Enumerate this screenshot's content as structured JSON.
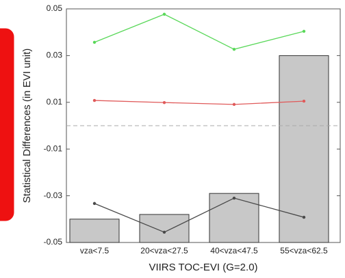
{
  "chart_data": {
    "type": "bar",
    "xlabel": "VIIRS TOC-EVI (G=2.0)",
    "ylabel": "Statistical Differences (in EVI unit)",
    "categories": [
      "vza<7.5",
      "20<vza<27.5",
      "40<vza<47.5",
      "55<vza<62.5"
    ],
    "values": [
      -0.04,
      -0.038,
      -0.029,
      0.03
    ],
    "color": "#c8c8c8",
    "series": [
      {
        "color": "#5ad85a",
        "values": [
          0.0357,
          0.0477,
          0.0327,
          0.0404
        ]
      },
      {
        "color": "#e05a5a",
        "values": [
          0.0108,
          0.0099,
          0.0091,
          0.0105
        ]
      },
      {
        "color": "#4a4a4a",
        "values": [
          -0.0333,
          -0.0456,
          -0.031,
          -0.0392
        ]
      }
    ],
    "reference_line": 0,
    "ylim": [
      -0.05,
      0.05
    ],
    "yticks": [
      -0.05,
      -0.03,
      -0.01,
      0.01,
      0.03,
      0.05
    ]
  }
}
